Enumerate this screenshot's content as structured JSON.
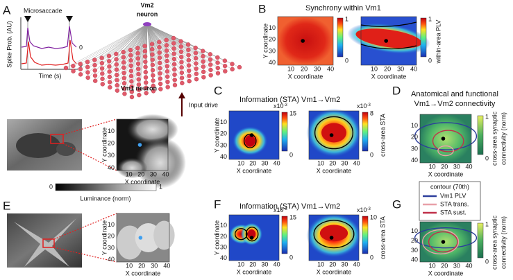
{
  "panel_A": {
    "letter": "A",
    "event_label": "Microsaccade",
    "y_label": "Spike Prob. (AU)",
    "x_label": "Time (s)",
    "zero_label": "0",
    "vm2_label": [
      "Vm2",
      "neuron"
    ],
    "vm1_label": "Vm1 neuron",
    "input_label": "Input drive"
  },
  "axes": {
    "x_label": "X coordinate",
    "y_label": "Y coordinate",
    "ticks": [
      10,
      20,
      30,
      40
    ]
  },
  "panel_B": {
    "letter": "B",
    "title": "Synchrony within Vm1",
    "colorbar": {
      "max": 1,
      "min": 0,
      "label": "within-area PLV"
    }
  },
  "panel_C": {
    "letter": "C",
    "title": "Information (STA) Vm1→Vm2",
    "colorbars": [
      {
        "scale": "x10",
        "exp": "-3",
        "max": 15,
        "min": 0
      },
      {
        "scale": "x10",
        "exp": "-3",
        "max": 8,
        "min": 0
      }
    ],
    "colorbar_label": "cross-area STA"
  },
  "luminance": {
    "min": 0,
    "max": 1,
    "label": "Luminance (norm)"
  },
  "panel_D": {
    "letter": "D",
    "title": [
      "Anatomical and functional",
      "Vm1→Vm2 connectivity"
    ],
    "colorbar": {
      "max": 1,
      "min": 0,
      "label": [
        "cross-area synaptic",
        "connectivity (norm)"
      ]
    }
  },
  "legend": {
    "title": "contour (70th)",
    "items": [
      {
        "name": "Vm1 PLV",
        "color": "#2c3e9c"
      },
      {
        "name": "STA trans.",
        "color": "#e8a0a8"
      },
      {
        "name": "STA sust.",
        "color": "#c0304a"
      }
    ]
  },
  "panel_E": {
    "letter": "E"
  },
  "panel_F": {
    "letter": "F",
    "title": "Information (STA) Vm1→Vm2",
    "colorbars": [
      {
        "scale": "x10",
        "exp": "-3",
        "max": 15,
        "min": 0
      },
      {
        "scale": "x10",
        "exp": "-3",
        "max": 10,
        "min": 0
      }
    ],
    "colorbar_label": "cross-area STA"
  },
  "panel_G": {
    "letter": "G",
    "colorbar": {
      "max": 1,
      "min": 0,
      "label": [
        "cross-area synaptic",
        "connectivity (norm)"
      ]
    }
  }
}
